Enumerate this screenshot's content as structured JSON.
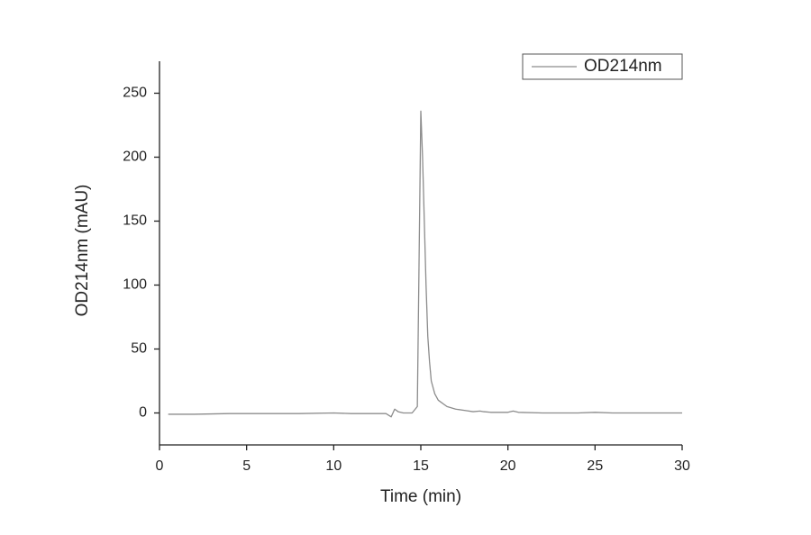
{
  "chart_data": {
    "type": "line",
    "x_label": "Time (min)",
    "y_label": "OD214nm (mAU)",
    "x": [
      0.5,
      2,
      4,
      6,
      8,
      10,
      11,
      12,
      13,
      13.3,
      13.5,
      13.7,
      14,
      14.5,
      14.8,
      14.9,
      15.0,
      15.1,
      15.2,
      15.3,
      15.4,
      15.5,
      15.6,
      15.8,
      16,
      16.5,
      17,
      17.5,
      18,
      18.4,
      18.6,
      19,
      20,
      20.3,
      20.6,
      22,
      24,
      25,
      26,
      28,
      30
    ],
    "series": [
      {
        "name": "OD214nm",
        "color": "#8c8c8c",
        "values": [
          -1,
          -1,
          -0.5,
          -0.5,
          -0.5,
          0,
          -0.5,
          -0.5,
          -0.5,
          -3,
          3,
          1,
          0,
          0,
          5,
          120,
          236,
          200,
          150,
          100,
          60,
          40,
          25,
          15,
          10,
          5,
          3,
          2,
          1,
          1.5,
          1,
          0.5,
          0.5,
          1.5,
          0.5,
          0,
          0,
          0.5,
          0,
          0,
          0
        ]
      }
    ],
    "xlim": [
      0,
      30
    ],
    "xticks": [
      0,
      5,
      10,
      15,
      20,
      25,
      30
    ],
    "ylim": [
      -25,
      275
    ],
    "yticks": [
      0,
      50,
      100,
      150,
      200,
      250
    ],
    "grid": false,
    "legend": "top-right"
  }
}
